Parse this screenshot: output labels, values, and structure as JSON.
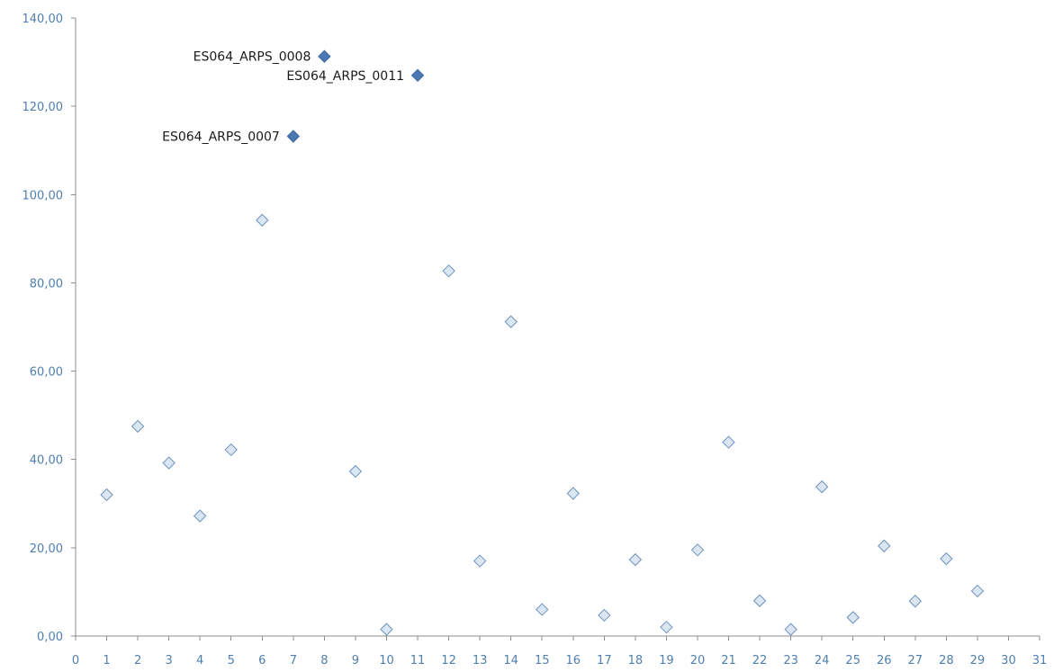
{
  "chart_data": {
    "type": "scatter",
    "xlim": [
      0,
      31
    ],
    "ylim": [
      0,
      140
    ],
    "x_ticks": [
      "0",
      "1",
      "2",
      "3",
      "4",
      "5",
      "6",
      "7",
      "8",
      "9",
      "10",
      "11",
      "12",
      "13",
      "14",
      "15",
      "16",
      "17",
      "18",
      "19",
      "20",
      "21",
      "22",
      "23",
      "24",
      "25",
      "26",
      "27",
      "28",
      "29",
      "30",
      "31"
    ],
    "y_ticks": [
      "0,00",
      "20,00",
      "40,00",
      "60,00",
      "80,00",
      "100,00",
      "120,00",
      "140,00"
    ],
    "grid": false,
    "colors": {
      "normal_fill": "#dbe6f3",
      "normal_stroke": "#6f93bd",
      "outlier_fill": "#4a78b4",
      "tick_text": "#4f7fae"
    },
    "series": [
      {
        "points": [
          {
            "x": 1,
            "y": 32.0
          },
          {
            "x": 2,
            "y": 47.5
          },
          {
            "x": 3,
            "y": 39.2
          },
          {
            "x": 4,
            "y": 27.2
          },
          {
            "x": 5,
            "y": 42.2
          },
          {
            "x": 6,
            "y": 94.2
          },
          {
            "x": 9,
            "y": 37.3
          },
          {
            "x": 10,
            "y": 1.5
          },
          {
            "x": 12,
            "y": 82.7
          },
          {
            "x": 13,
            "y": 17.0
          },
          {
            "x": 14,
            "y": 71.2
          },
          {
            "x": 15,
            "y": 6.0
          },
          {
            "x": 16,
            "y": 32.3
          },
          {
            "x": 17,
            "y": 4.7
          },
          {
            "x": 18,
            "y": 17.3
          },
          {
            "x": 19,
            "y": 2.0
          },
          {
            "x": 20,
            "y": 19.5
          },
          {
            "x": 21,
            "y": 43.9
          },
          {
            "x": 22,
            "y": 8.0
          },
          {
            "x": 23,
            "y": 1.5
          },
          {
            "x": 24,
            "y": 33.8
          },
          {
            "x": 25,
            "y": 4.2
          },
          {
            "x": 26,
            "y": 20.4
          },
          {
            "x": 27,
            "y": 7.9
          },
          {
            "x": 28,
            "y": 17.5
          },
          {
            "x": 29,
            "y": 10.2
          }
        ]
      },
      {
        "highlighted": true,
        "points": [
          {
            "x": 7,
            "y": 113.2,
            "label": "ES064_ARPS_0007"
          },
          {
            "x": 8,
            "y": 131.3,
            "label": "ES064_ARPS_0008"
          },
          {
            "x": 11,
            "y": 127.0,
            "label": "ES064_ARPS_0011"
          }
        ]
      }
    ]
  }
}
